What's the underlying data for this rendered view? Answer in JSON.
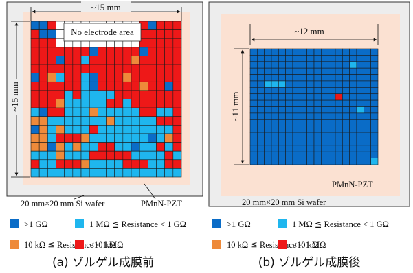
{
  "colors": {
    "gt_1g": "#0A6CC7",
    "mid_1m_1g": "#1FB6EE",
    "mid_10k_1m": "#EE8A3A",
    "lt_10k": "#EE1818",
    "pzt_bg": "#FBE1D2",
    "frame_bg": "#EDEDED"
  },
  "panel_a": {
    "dim_top": "~15 mm",
    "dim_left": "~15 mm",
    "no_electrode_label": "No electrode area",
    "wafer_label": "20 mm×20 mm Si wafer",
    "film_label": "PMnN-PZT",
    "caption": "(a) ゾルゲル成膜前"
  },
  "panel_b": {
    "dim_top": "~12 mm",
    "dim_left": "~11 mm",
    "film_label": "PMnN-PZT",
    "wafer_label": "20 mm×20 mm Si wafer",
    "caption": "(b) ゾルゲル成膜後"
  },
  "legend": [
    {
      "key": "gt_1g",
      "label": ">1 GΩ"
    },
    {
      "key": "mid_1m_1g",
      "label": "1 MΩ ≦ Resistance < 1 GΩ"
    },
    {
      "key": "mid_10k_1m",
      "label": "10 kΩ ≦ Resistance < 1 MΩ"
    },
    {
      "key": "lt_10k",
      "label": "<10 kΩ"
    }
  ],
  "grid_a": [
    "BBR0000000000RBRRR",
    "RBB0000000000RRRRR",
    "RRR0000000000RRRRR",
    "RRRRRRRBRRRRRBRRRR",
    "RRRBRRCRRRRRORRRRR",
    "RRRRRRRRRRRRRRRRRR",
    "BROCRRCBRRRORRRRRR",
    "RRRRRRCBRRRRRORRBR",
    "RRRRCRCCCCRRRRRRRR",
    "RRROCCCCCRRCRRRRRR",
    "CBRRCCCOCCCCCRRCCR",
    "OOCCCCCCCOCCCCCRRR",
    "BOCOCCCRCCCCCCCCCR",
    "OOCRRROCCCCCCCBCOR",
    "OOBOCOCCRRCCBCCRCR",
    "CCCOCCCRRRRRCCCCRC",
    "RCCRRROCCCCRRRCCRR",
    "CCCCCCCCCCCCCCCCCC"
  ],
  "grid_b": [
    "BBBBBBBBBBBBBBBBBB",
    "BBBBBBBBBBBBBBBBBB",
    "BBBBBBBBBBBBBBCBBB",
    "BBBBBBBBBBBBBBBBBB",
    "BBBBBBBBBBBBBBBBBB",
    "BBCCCBBBBBBBBBBBBB",
    "BBBBBBBBBBBBBBBBBB",
    "BBBBBBBBBBBBRBBBBB",
    "BBBBBBBBBBBBBBBBBB",
    "BBBBBBBBBBBBBBBCBB",
    "BBBBBBBBBBBBBBBBBB",
    "BBBBBBBBBBBBBBBBBB",
    "BBBBBBBBBBBBBBBBBB",
    "BBBBBBBBBBBBBBBBBB",
    "BBBBBBBBBBBBBBBBBB",
    "BBBBBBBBBBBBBBBBBB",
    "BBBBBBBBBBBBBBBBBB",
    "BBBBBBBBBBBBBBBBBC"
  ]
}
